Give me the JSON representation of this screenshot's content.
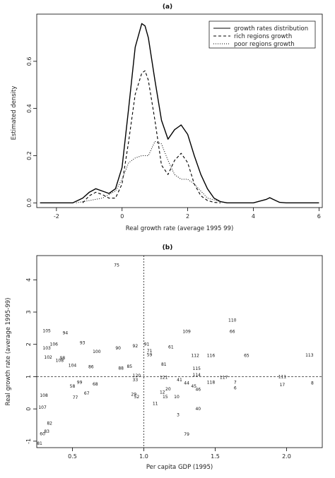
{
  "chart_data": [
    {
      "id": "a",
      "type": "line",
      "title": "(a)",
      "xlabel": "Real growth rate (average 1995 99)",
      "ylabel": "Estimated density",
      "xlim": [
        -2.6,
        6.1
      ],
      "ylim": [
        -0.02,
        0.8
      ],
      "xticks": [
        "-2",
        "0",
        "2",
        "4",
        "6"
      ],
      "yticks": [
        "0.0",
        "0.2",
        "0.4",
        "0.6"
      ],
      "legend_position": "top-right",
      "series": [
        {
          "name": "growth rates distribution",
          "style": "solid",
          "x": [
            -2.5,
            -1.5,
            -1.2,
            -1.0,
            -0.8,
            -0.6,
            -0.4,
            -0.2,
            0.0,
            0.2,
            0.4,
            0.6,
            0.7,
            0.8,
            1.0,
            1.2,
            1.4,
            1.6,
            1.8,
            2.0,
            2.2,
            2.4,
            2.6,
            2.8,
            3.0,
            3.2,
            3.6,
            4.0,
            4.4,
            4.5,
            4.6,
            4.8,
            5.0,
            6.0
          ],
          "values": [
            0,
            0,
            0.02,
            0.045,
            0.06,
            0.05,
            0.04,
            0.06,
            0.15,
            0.4,
            0.66,
            0.76,
            0.75,
            0.7,
            0.52,
            0.35,
            0.27,
            0.31,
            0.33,
            0.29,
            0.2,
            0.12,
            0.06,
            0.02,
            0.005,
            0,
            0,
            0,
            0.015,
            0.022,
            0.015,
            0.002,
            0,
            0
          ]
        },
        {
          "name": "rich regions growth",
          "style": "dashed",
          "x": [
            -1.2,
            -1.0,
            -0.8,
            -0.6,
            -0.4,
            -0.2,
            0.0,
            0.2,
            0.4,
            0.6,
            0.7,
            0.8,
            1.0,
            1.2,
            1.4,
            1.6,
            1.8,
            2.0,
            2.2,
            2.4,
            2.6,
            2.8,
            3.0
          ],
          "values": [
            0,
            0.03,
            0.045,
            0.035,
            0.02,
            0.02,
            0.08,
            0.26,
            0.46,
            0.55,
            0.56,
            0.52,
            0.35,
            0.16,
            0.12,
            0.18,
            0.21,
            0.17,
            0.08,
            0.03,
            0.01,
            0.002,
            0
          ]
        },
        {
          "name": "poor regions growth",
          "style": "dotted",
          "x": [
            -1.4,
            -1.0,
            -0.6,
            -0.2,
            0.0,
            0.2,
            0.4,
            0.6,
            0.8,
            1.0,
            1.2,
            1.4,
            1.6,
            1.8,
            2.0,
            2.2,
            2.4,
            2.6,
            3.0,
            3.2
          ],
          "values": [
            0,
            0.01,
            0.02,
            0.05,
            0.1,
            0.17,
            0.19,
            0.2,
            0.2,
            0.26,
            0.25,
            0.18,
            0.12,
            0.1,
            0.1,
            0.08,
            0.05,
            0.02,
            0.005,
            0
          ]
        }
      ]
    },
    {
      "id": "b",
      "type": "scatter",
      "title": "(b)",
      "xlabel": "Per capita GDP (1995)",
      "ylabel": "Real growth rate (average 1995-99)",
      "xlim": [
        0.25,
        2.25
      ],
      "ylim": [
        -1.2,
        4.75
      ],
      "xticks": [
        "0.5",
        "1.0",
        "1.5",
        "2.0"
      ],
      "yticks": [
        "-1",
        "0",
        "1",
        "2",
        "3",
        "4"
      ],
      "reference_lines": {
        "x": 1.0,
        "y": 1.0
      },
      "points": [
        {
          "label": "75",
          "x": 0.81,
          "y": 4.45
        },
        {
          "label": "110",
          "x": 1.62,
          "y": 2.75
        },
        {
          "label": "105",
          "x": 0.32,
          "y": 2.42
        },
        {
          "label": "94",
          "x": 0.45,
          "y": 2.35
        },
        {
          "label": "109",
          "x": 1.3,
          "y": 2.4
        },
        {
          "label": "66",
          "x": 1.62,
          "y": 2.4
        },
        {
          "label": "93",
          "x": 0.57,
          "y": 2.05
        },
        {
          "label": "106",
          "x": 0.37,
          "y": 2.0
        },
        {
          "label": "103",
          "x": 0.32,
          "y": 1.88
        },
        {
          "label": "90",
          "x": 0.82,
          "y": 1.88
        },
        {
          "label": "92",
          "x": 0.94,
          "y": 1.95
        },
        {
          "label": "91",
          "x": 1.02,
          "y": 2.0
        },
        {
          "label": "61",
          "x": 1.19,
          "y": 1.92
        },
        {
          "label": "100",
          "x": 0.67,
          "y": 1.78
        },
        {
          "label": "71",
          "x": 1.04,
          "y": 1.8
        },
        {
          "label": "59",
          "x": 1.04,
          "y": 1.68
        },
        {
          "label": "112",
          "x": 1.36,
          "y": 1.65
        },
        {
          "label": "116",
          "x": 1.47,
          "y": 1.65
        },
        {
          "label": "65",
          "x": 1.72,
          "y": 1.65
        },
        {
          "label": "113",
          "x": 2.16,
          "y": 1.67
        },
        {
          "label": "102",
          "x": 0.33,
          "y": 1.6
        },
        {
          "label": "98",
          "x": 0.43,
          "y": 1.58
        },
        {
          "label": "108",
          "x": 0.41,
          "y": 1.5
        },
        {
          "label": "104",
          "x": 0.5,
          "y": 1.35
        },
        {
          "label": "86",
          "x": 0.63,
          "y": 1.3
        },
        {
          "label": "88",
          "x": 0.84,
          "y": 1.26
        },
        {
          "label": "85",
          "x": 0.9,
          "y": 1.32
        },
        {
          "label": "81",
          "x": 1.14,
          "y": 1.38
        },
        {
          "label": "115",
          "x": 1.37,
          "y": 1.25
        },
        {
          "label": "120",
          "x": 0.95,
          "y": 1.03
        },
        {
          "label": "121",
          "x": 1.14,
          "y": 0.98
        },
        {
          "label": "114",
          "x": 1.37,
          "y": 1.05
        },
        {
          "label": "117",
          "x": 1.56,
          "y": 0.98
        },
        {
          "label": "111",
          "x": 1.97,
          "y": 1.0
        },
        {
          "label": "33",
          "x": 0.94,
          "y": 0.9
        },
        {
          "label": "41",
          "x": 1.25,
          "y": 0.9
        },
        {
          "label": "118",
          "x": 1.47,
          "y": 0.82
        },
        {
          "label": "7",
          "x": 1.64,
          "y": 0.82
        },
        {
          "label": "17",
          "x": 1.97,
          "y": 0.75
        },
        {
          "label": "8",
          "x": 2.18,
          "y": 0.8
        },
        {
          "label": "58",
          "x": 0.5,
          "y": 0.7
        },
        {
          "label": "99",
          "x": 0.55,
          "y": 0.82
        },
        {
          "label": "68",
          "x": 0.66,
          "y": 0.77
        },
        {
          "label": "44",
          "x": 1.3,
          "y": 0.8
        },
        {
          "label": "45",
          "x": 1.35,
          "y": 0.7
        },
        {
          "label": "6",
          "x": 1.64,
          "y": 0.65
        },
        {
          "label": "46",
          "x": 1.38,
          "y": 0.6
        },
        {
          "label": "20",
          "x": 1.17,
          "y": 0.62
        },
        {
          "label": "67",
          "x": 0.6,
          "y": 0.48
        },
        {
          "label": "29",
          "x": 0.93,
          "y": 0.45
        },
        {
          "label": "52",
          "x": 0.95,
          "y": 0.38
        },
        {
          "label": "12",
          "x": 1.13,
          "y": 0.52
        },
        {
          "label": "15",
          "x": 1.15,
          "y": 0.37
        },
        {
          "label": "10",
          "x": 1.23,
          "y": 0.37
        },
        {
          "label": "108",
          "x": 0.3,
          "y": 0.42
        },
        {
          "label": "77",
          "x": 0.52,
          "y": 0.35
        },
        {
          "label": "11",
          "x": 1.08,
          "y": 0.17
        },
        {
          "label": "107",
          "x": 0.29,
          "y": 0.05
        },
        {
          "label": "40",
          "x": 1.38,
          "y": 0.0
        },
        {
          "label": "3",
          "x": 1.24,
          "y": -0.18
        },
        {
          "label": "82",
          "x": 0.34,
          "y": -0.45
        },
        {
          "label": "83",
          "x": 0.32,
          "y": -0.7
        },
        {
          "label": "60",
          "x": 0.29,
          "y": -0.77
        },
        {
          "label": "79",
          "x": 1.3,
          "y": -0.78
        },
        {
          "label": "81",
          "x": 0.27,
          "y": -1.07
        }
      ]
    }
  ]
}
